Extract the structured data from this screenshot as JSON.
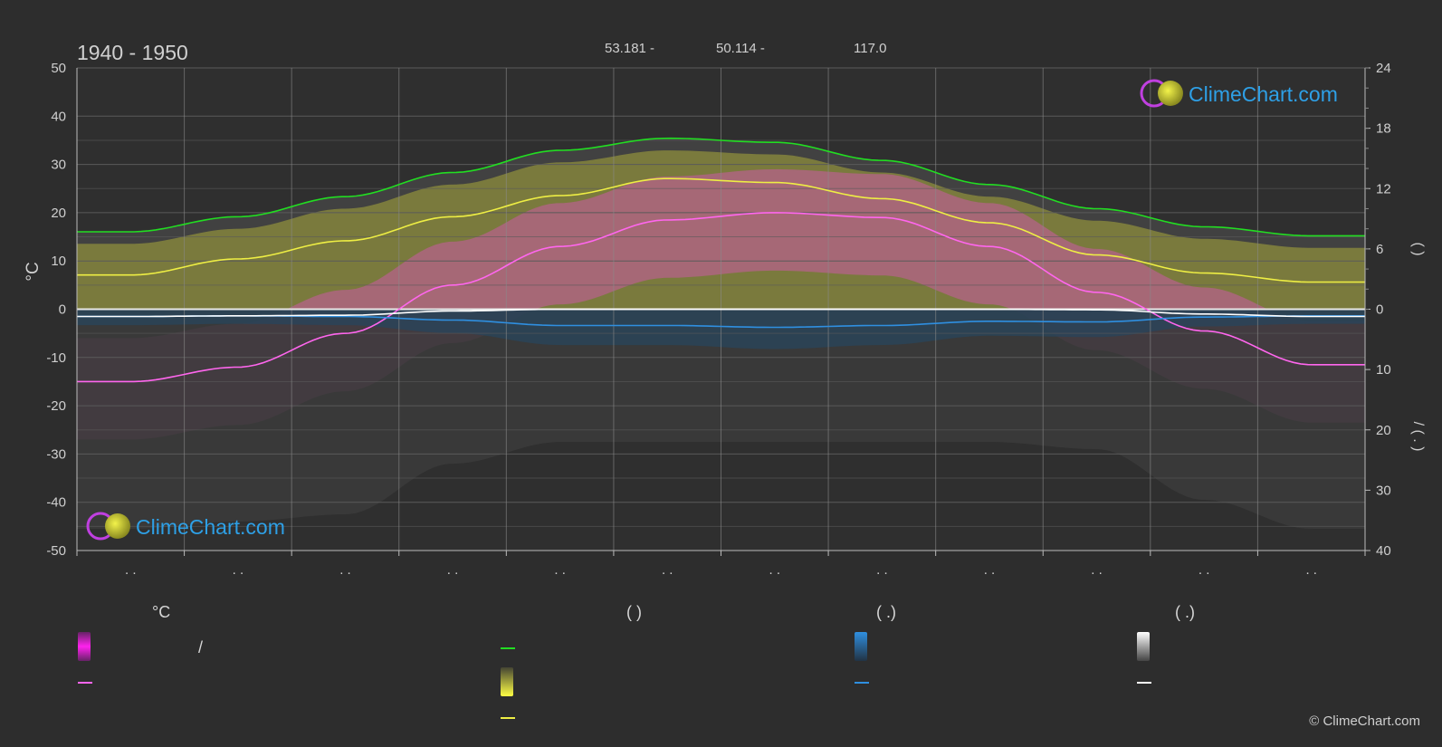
{
  "header": {
    "period": "1940 - 1950",
    "lat": "53.181 -",
    "lon": "50.114 -",
    "elev": "117.0"
  },
  "logo": {
    "text": "ClimeChart.com"
  },
  "copyright": "© ClimeChart.com",
  "colors": {
    "bg": "#2d2d2d",
    "grid": "#5a5a5a",
    "daylight": "#22dd22",
    "sunshine": "#eeee44",
    "tmax": "#ff66ee",
    "rain": "#2f8fe0",
    "snow": "#ffffff",
    "sunfill": "#a9a93a",
    "tempfill": "#d255b0",
    "logo_text": "#2ea0e6"
  },
  "legend": {
    "temp_title": "°C",
    "sun_title": "(           )",
    "rain_title": "(    .)",
    "snow_title": "(    .)",
    "temp_range_sep": "/"
  },
  "chart_data": {
    "type": "line",
    "x_ticks": [
      ". .",
      ". .",
      ". .",
      ". .",
      ". .",
      ". .",
      ". .",
      ". .",
      ". .",
      ". .",
      ". .",
      ". ."
    ],
    "y_left": {
      "label": "°C",
      "range": [
        -50,
        50
      ],
      "ticks": [
        50,
        40,
        30,
        20,
        10,
        0,
        -10,
        -20,
        -30,
        -40,
        -50
      ]
    },
    "y_right_top": {
      "label": "(    )",
      "range": [
        0,
        24
      ],
      "ticks": [
        24,
        18,
        12,
        6,
        0
      ]
    },
    "y_right_bottom": {
      "label": "/  (  .  )",
      "range": [
        0,
        40
      ],
      "ticks": [
        10,
        20,
        30,
        40
      ]
    },
    "grid": true,
    "series": [
      {
        "key": "daylight",
        "axis": "hours",
        "values": [
          7.7,
          9.2,
          11.2,
          13.6,
          15.8,
          17.0,
          16.6,
          14.8,
          12.4,
          10.0,
          8.2,
          7.3
        ]
      },
      {
        "key": "sunshine",
        "axis": "hours",
        "values": [
          3.4,
          5.0,
          6.8,
          9.2,
          11.3,
          13.0,
          12.6,
          11.0,
          8.6,
          5.4,
          3.6,
          2.7
        ]
      },
      {
        "key": "tmax",
        "axis": "celsius",
        "values": [
          -15.0,
          -12.0,
          -5.0,
          5.0,
          13.0,
          18.5,
          20.0,
          19.0,
          13.0,
          3.5,
          -4.5,
          -11.5
        ]
      },
      {
        "key": "rain",
        "axis": "mm",
        "values": [
          1.2,
          1.1,
          1.2,
          1.8,
          2.7,
          2.7,
          3.0,
          2.7,
          2.0,
          2.1,
          1.3,
          1.1
        ]
      },
      {
        "key": "snow",
        "axis": "mm",
        "values": [
          1.2,
          1.1,
          1.0,
          0.3,
          0.0,
          0.0,
          0.0,
          0.0,
          0.0,
          0.1,
          0.8,
          1.2
        ]
      }
    ]
  }
}
